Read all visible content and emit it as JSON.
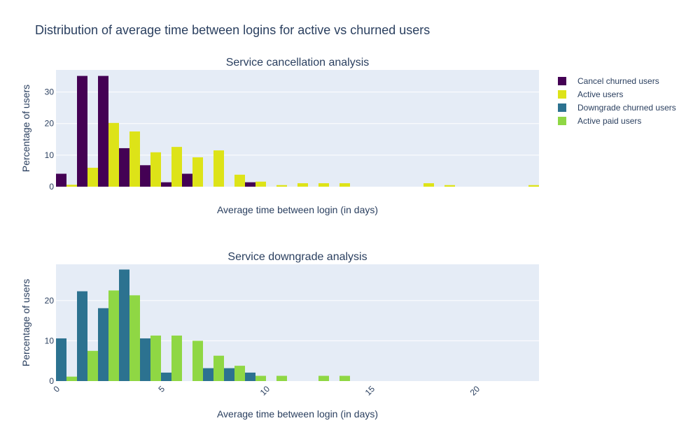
{
  "title": "Distribution of average time between logins for active vs churned users",
  "colors": {
    "cancel_churned": "#440154",
    "active_users": "#dde318",
    "downgrade_churned": "#2c7290",
    "active_paid": "#8fd744",
    "plot_bg": "#e5ecf6",
    "grid": "#ffffff",
    "text": "#2a3f5f"
  },
  "legend": [
    {
      "name": "Cancel churned users",
      "color": "#440154"
    },
    {
      "name": "Active users",
      "color": "#dde318"
    },
    {
      "name": "Downgrade churned users",
      "color": "#2c7290"
    },
    {
      "name": "Active paid users",
      "color": "#8fd744"
    }
  ],
  "chart_data": [
    {
      "type": "bar",
      "title": "Service cancellation analysis",
      "xlabel": "Average time between login (in days)",
      "ylabel": "Percentage of users",
      "xlim": [
        0,
        23
      ],
      "ylim": [
        0,
        37
      ],
      "yticks": [
        0,
        10,
        20,
        30
      ],
      "bin_width": 1,
      "x": [
        0,
        1,
        2,
        3,
        4,
        5,
        6,
        7,
        8,
        9,
        10,
        11,
        12,
        13,
        14,
        15,
        16,
        17,
        18,
        19,
        20,
        21,
        22
      ],
      "series": [
        {
          "name": "Cancel churned users",
          "values": [
            4.1,
            35.1,
            35.1,
            12.2,
            6.8,
            1.4,
            4.1,
            0,
            0,
            1.4,
            0,
            0,
            0,
            0,
            0,
            0,
            0,
            0,
            0,
            0,
            0,
            0,
            0
          ]
        },
        {
          "name": "Active users",
          "values": [
            0.6,
            6.0,
            20.2,
            17.5,
            10.9,
            12.6,
            9.3,
            11.5,
            3.8,
            1.6,
            0.5,
            1.1,
            1.1,
            1.1,
            0,
            0,
            0,
            1.1,
            0.5,
            0,
            0,
            0,
            0.5
          ]
        }
      ]
    },
    {
      "type": "bar",
      "title": "Service downgrade analysis",
      "xlabel": "Average time between login (in days)",
      "ylabel": "Percentage of users",
      "xlim": [
        0,
        23
      ],
      "ylim": [
        0,
        29
      ],
      "yticks": [
        0,
        10,
        20
      ],
      "xticks": [
        0,
        5,
        10,
        15,
        20
      ],
      "bin_width": 1,
      "x": [
        0,
        1,
        2,
        3,
        4,
        5,
        6,
        7,
        8,
        9,
        10,
        11,
        12,
        13,
        14,
        15,
        16,
        17,
        18,
        19,
        20,
        21,
        22
      ],
      "series": [
        {
          "name": "Downgrade churned users",
          "values": [
            10.6,
            22.3,
            18.1,
            27.7,
            10.6,
            2.1,
            0,
            3.2,
            3.2,
            2.1,
            0,
            0,
            0,
            0,
            0,
            0,
            0,
            0,
            0,
            0,
            0,
            0,
            0
          ]
        },
        {
          "name": "Active paid users",
          "values": [
            1.1,
            7.5,
            22.5,
            21.3,
            11.3,
            11.3,
            10.0,
            6.3,
            3.8,
            1.3,
            1.3,
            0,
            1.3,
            1.3,
            0,
            0,
            0,
            0,
            0,
            0,
            0,
            0,
            0
          ]
        }
      ]
    }
  ]
}
